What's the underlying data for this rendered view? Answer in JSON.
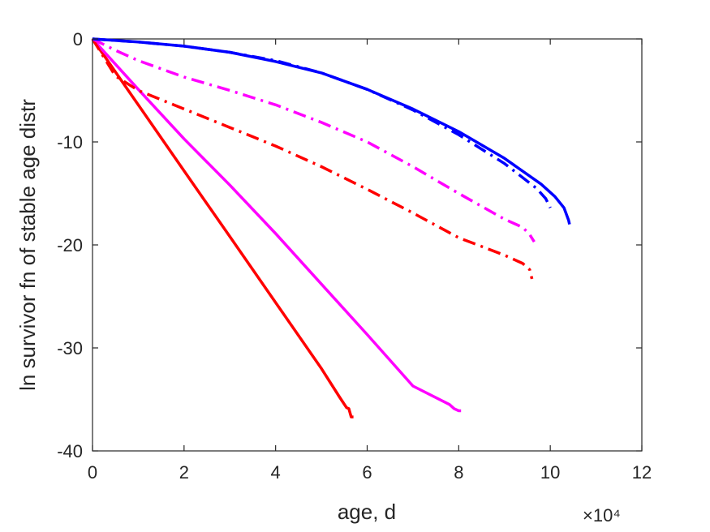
{
  "chart_data": {
    "type": "line",
    "title": "",
    "xlabel": "age, d",
    "ylabel": "ln survivor fn of stable age distr",
    "x_multiplier": "×10⁴",
    "xlim": [
      0,
      120000
    ],
    "ylim": [
      -40,
      0
    ],
    "xticks": [
      0,
      20000,
      40000,
      60000,
      80000,
      100000,
      120000
    ],
    "xtick_labels": [
      "0",
      "2",
      "4",
      "6",
      "8",
      "10",
      "12"
    ],
    "yticks": [
      0,
      -10,
      -20,
      -30,
      -40
    ],
    "ytick_labels": [
      "0",
      "-10",
      "-20",
      "-30",
      "-40"
    ],
    "grid": false,
    "series": [
      {
        "color": "#ff0000",
        "style": "solid",
        "points": [
          [
            0,
            0
          ],
          [
            10000,
            -6.4
          ],
          [
            20000,
            -12.8
          ],
          [
            30000,
            -19.2
          ],
          [
            40000,
            -25.6
          ],
          [
            50000,
            -32.0
          ],
          [
            54000,
            -34.8
          ],
          [
            55500,
            -35.8
          ],
          [
            56000,
            -35.9
          ],
          [
            56500,
            -36.7
          ],
          [
            57000,
            -36.7
          ]
        ]
      },
      {
        "color": "#ff00ff",
        "style": "solid",
        "points": [
          [
            0,
            0
          ],
          [
            10000,
            -4.9
          ],
          [
            20000,
            -9.7
          ],
          [
            30000,
            -14.2
          ],
          [
            40000,
            -18.9
          ],
          [
            50000,
            -23.8
          ],
          [
            60000,
            -28.7
          ],
          [
            70000,
            -33.7
          ],
          [
            78000,
            -35.5
          ],
          [
            79000,
            -35.9
          ],
          [
            80000,
            -36.1
          ],
          [
            80500,
            -36.1
          ]
        ]
      },
      {
        "color": "#ff0000",
        "style": "dashdot",
        "points": [
          [
            0,
            0
          ],
          [
            5000,
            -3.6
          ],
          [
            10000,
            -5.0
          ],
          [
            20000,
            -6.8
          ],
          [
            30000,
            -8.6
          ],
          [
            40000,
            -10.4
          ],
          [
            50000,
            -12.4
          ],
          [
            60000,
            -14.6
          ],
          [
            70000,
            -16.9
          ],
          [
            80000,
            -19.3
          ],
          [
            90000,
            -21.0
          ],
          [
            94000,
            -21.8
          ],
          [
            95500,
            -22.4
          ],
          [
            96000,
            -23.3
          ]
        ]
      },
      {
        "color": "#ff00ff",
        "style": "dashdot",
        "points": [
          [
            0,
            0
          ],
          [
            5000,
            -1.1
          ],
          [
            10000,
            -2.1
          ],
          [
            20000,
            -3.7
          ],
          [
            30000,
            -5.0
          ],
          [
            40000,
            -6.4
          ],
          [
            50000,
            -8.1
          ],
          [
            60000,
            -10.0
          ],
          [
            70000,
            -12.4
          ],
          [
            80000,
            -15.0
          ],
          [
            90000,
            -17.5
          ],
          [
            94000,
            -18.3
          ],
          [
            95500,
            -19.0
          ],
          [
            96500,
            -19.7
          ]
        ]
      },
      {
        "color": "#0000ff",
        "style": "dashdot",
        "points": [
          [
            0,
            0
          ],
          [
            10000,
            -0.3
          ],
          [
            20000,
            -0.7
          ],
          [
            30000,
            -1.3
          ],
          [
            40000,
            -2.1
          ],
          [
            50000,
            -3.3
          ],
          [
            60000,
            -4.9
          ],
          [
            70000,
            -6.9
          ],
          [
            80000,
            -9.3
          ],
          [
            90000,
            -12.1
          ],
          [
            97000,
            -14.5
          ],
          [
            99000,
            -15.5
          ],
          [
            100000,
            -16.4
          ]
        ]
      },
      {
        "color": "#0000ff",
        "style": "solid",
        "points": [
          [
            0,
            0
          ],
          [
            10000,
            -0.3
          ],
          [
            20000,
            -0.7
          ],
          [
            30000,
            -1.3
          ],
          [
            40000,
            -2.2
          ],
          [
            50000,
            -3.3
          ],
          [
            60000,
            -4.9
          ],
          [
            70000,
            -6.8
          ],
          [
            80000,
            -9.0
          ],
          [
            90000,
            -11.6
          ],
          [
            98000,
            -14.1
          ],
          [
            101000,
            -15.3
          ],
          [
            103000,
            -16.4
          ],
          [
            104000,
            -17.6
          ],
          [
            104200,
            -18.0
          ]
        ]
      }
    ]
  }
}
